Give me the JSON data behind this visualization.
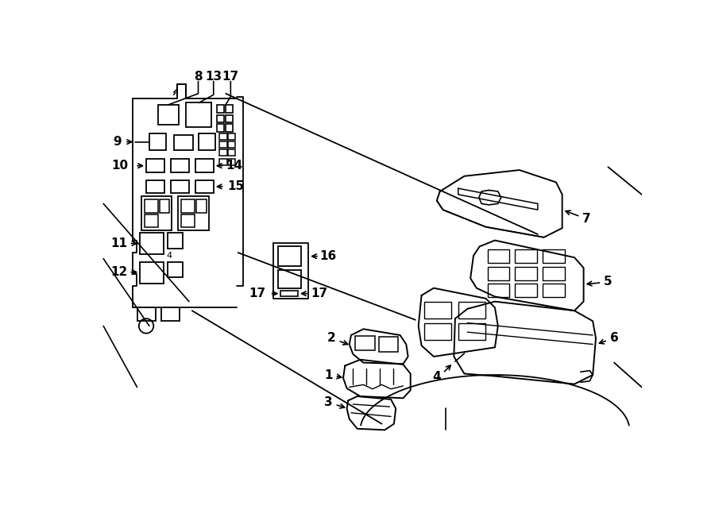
{
  "bg_color": "#ffffff",
  "line_color": "#000000",
  "figsize": [
    9.0,
    6.61
  ],
  "dpi": 100,
  "lw": 1.3,
  "label_fs": 11,
  "label_fw": "bold"
}
